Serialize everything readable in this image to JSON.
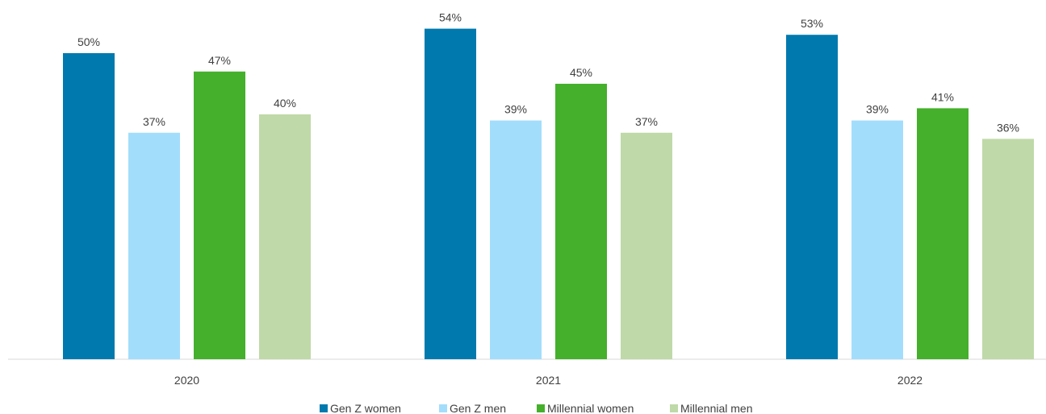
{
  "chart_data": {
    "type": "bar",
    "categories": [
      "2020",
      "2021",
      "2022"
    ],
    "series": [
      {
        "name": "Gen Z women",
        "values": [
          50,
          54,
          53
        ],
        "color": "#0079AE"
      },
      {
        "name": "Gen Z men",
        "values": [
          37,
          39,
          39
        ],
        "color": "#A3DDFC"
      },
      {
        "name": "Millennial women",
        "values": [
          47,
          45,
          41
        ],
        "color": "#45B02B"
      },
      {
        "name": "Millennial men",
        "values": [
          40,
          37,
          36
        ],
        "color": "#BFD9A8"
      }
    ],
    "value_suffix": "%",
    "ylim": [
      0,
      60
    ],
    "grid": false,
    "legend_position": "bottom"
  }
}
